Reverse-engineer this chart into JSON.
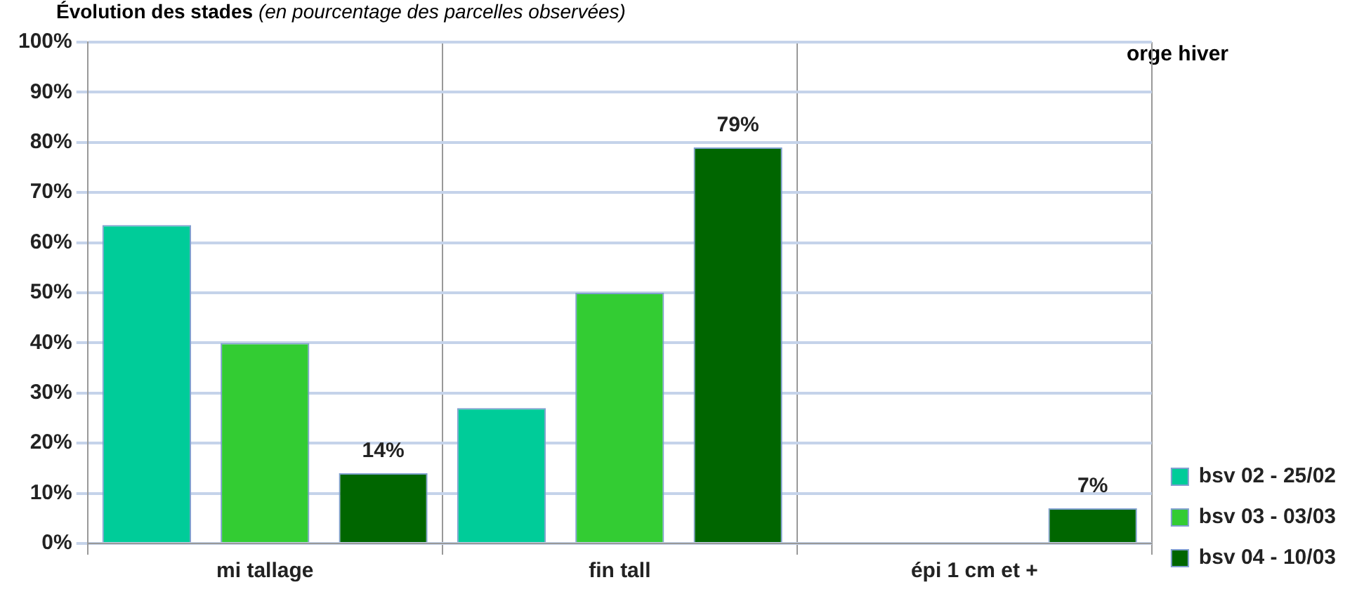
{
  "chart_data": {
    "type": "bar",
    "title": "Évolution des stades",
    "subtitle": "(en pourcentage des parcelles observées)",
    "categories": [
      "mi tallage",
      "fin tall",
      "épi 1 cm et +"
    ],
    "series": [
      {
        "name": "bsv 02 - 25/02",
        "color": "#00cc99",
        "values": [
          63.5,
          27,
          0
        ]
      },
      {
        "name": "bsv 03 - 03/03",
        "color": "#33cc33",
        "values": [
          40,
          50,
          0
        ]
      },
      {
        "name": "bsv 04 - 10/03",
        "color": "#006600",
        "values": [
          14,
          79,
          7
        ],
        "value_labels": [
          "14%",
          "79%",
          "7%"
        ]
      }
    ],
    "ylim": [
      0,
      100
    ],
    "yticks": [
      {
        "value": 0,
        "label": "0%"
      },
      {
        "value": 10,
        "label": "10%"
      },
      {
        "value": 20,
        "label": "20%"
      },
      {
        "value": 30,
        "label": "30%"
      },
      {
        "value": 40,
        "label": "40%"
      },
      {
        "value": 50,
        "label": "50%"
      },
      {
        "value": 60,
        "label": "60%"
      },
      {
        "value": 70,
        "label": "70%"
      },
      {
        "value": 80,
        "label": "80%"
      },
      {
        "value": 90,
        "label": "90%"
      },
      {
        "value": 100,
        "label": "100%"
      }
    ],
    "grid": true,
    "legend": "right",
    "annotations": [
      "orge hiver"
    ]
  }
}
